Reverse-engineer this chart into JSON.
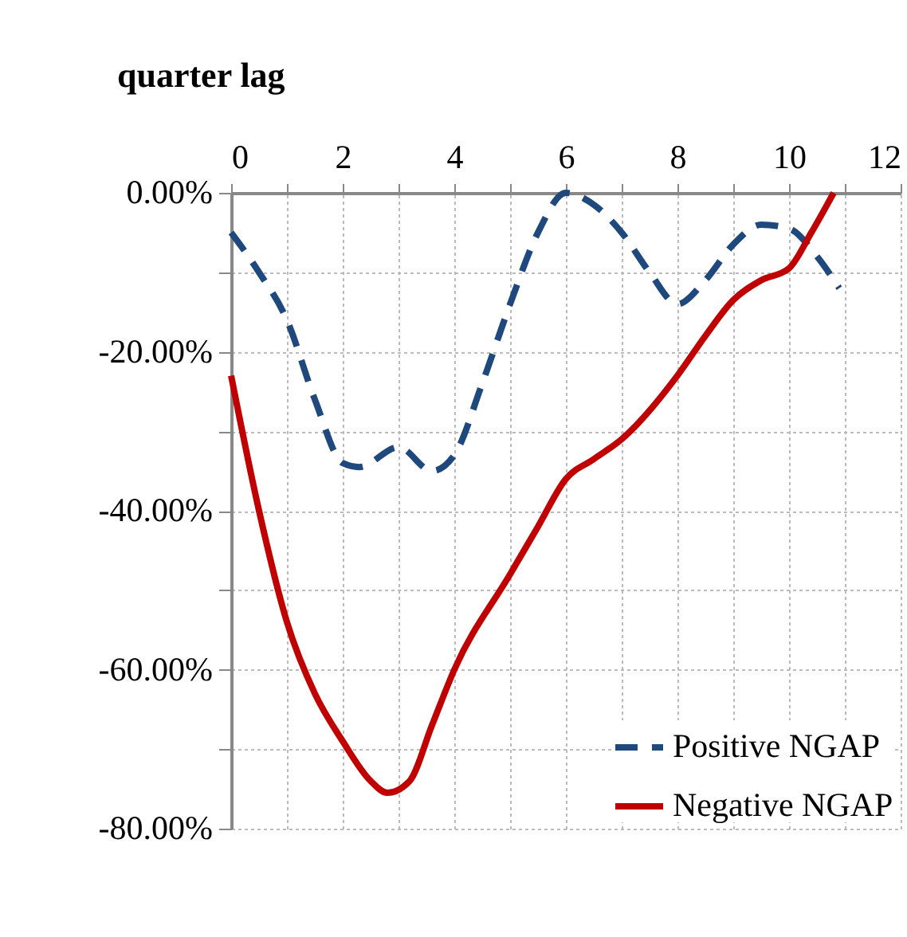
{
  "chart_data": {
    "type": "line",
    "xlabel": "quarter lag",
    "xlim": [
      0,
      12
    ],
    "xticks": [
      0,
      {
        "value": 1,
        "label": null
      },
      2,
      {
        "value": 3,
        "label": null
      },
      4,
      {
        "value": 5,
        "label": null
      },
      6,
      {
        "value": 7,
        "label": null
      },
      8,
      {
        "value": 9,
        "label": null
      },
      10,
      {
        "value": 11,
        "label": null
      },
      12
    ],
    "ylim": [
      -80,
      0
    ],
    "yticks": [
      {
        "value": 0,
        "label": "0.00%"
      },
      {
        "value": -10,
        "label": null
      },
      {
        "value": -20,
        "label": "-20.00%"
      },
      {
        "value": -30,
        "label": null
      },
      {
        "value": -40,
        "label": "-40.00%"
      },
      {
        "value": -50,
        "label": null
      },
      {
        "value": -60,
        "label": "-60.00%"
      },
      {
        "value": -70,
        "label": null
      },
      {
        "value": -80,
        "label": "-80.00%"
      }
    ],
    "grid": true,
    "legend": "bottom right",
    "marker": "none",
    "series": [
      {
        "name": "Positive NGAP",
        "color": "#1f497d",
        "line_style": "dashed",
        "x": [
          0,
          0.5,
          1,
          1.5,
          2,
          2.3,
          3,
          3.6,
          4,
          4.5,
          5,
          5.5,
          6,
          6.5,
          7,
          7.5,
          8,
          8.5,
          9,
          9.5,
          10,
          10.5,
          10.9
        ],
        "values": [
          -5,
          -10,
          -16,
          -26,
          -34,
          -34.5,
          -32,
          -35,
          -33,
          -24,
          -14,
          -5,
          0,
          -1.5,
          -5,
          -10,
          -14,
          -11,
          -6.5,
          -4,
          -4.5,
          -8,
          -12
        ]
      },
      {
        "name": "Negative NGAP",
        "color": "#c00000",
        "line_style": "solid",
        "x": [
          0,
          0.5,
          1,
          1.5,
          2,
          2.5,
          2.8,
          3.2,
          3.6,
          4,
          5,
          5.5,
          6,
          6.5,
          7,
          8,
          8.5,
          9,
          9.5,
          10,
          10.4,
          10.8
        ],
        "values": [
          -23,
          -40,
          -54,
          -63,
          -69,
          -74,
          -75.5,
          -74,
          -67,
          -60,
          -48,
          -42,
          -36,
          -33.5,
          -31,
          -23,
          -18,
          -13.5,
          -11,
          -9.5,
          -5,
          0
        ]
      }
    ]
  }
}
